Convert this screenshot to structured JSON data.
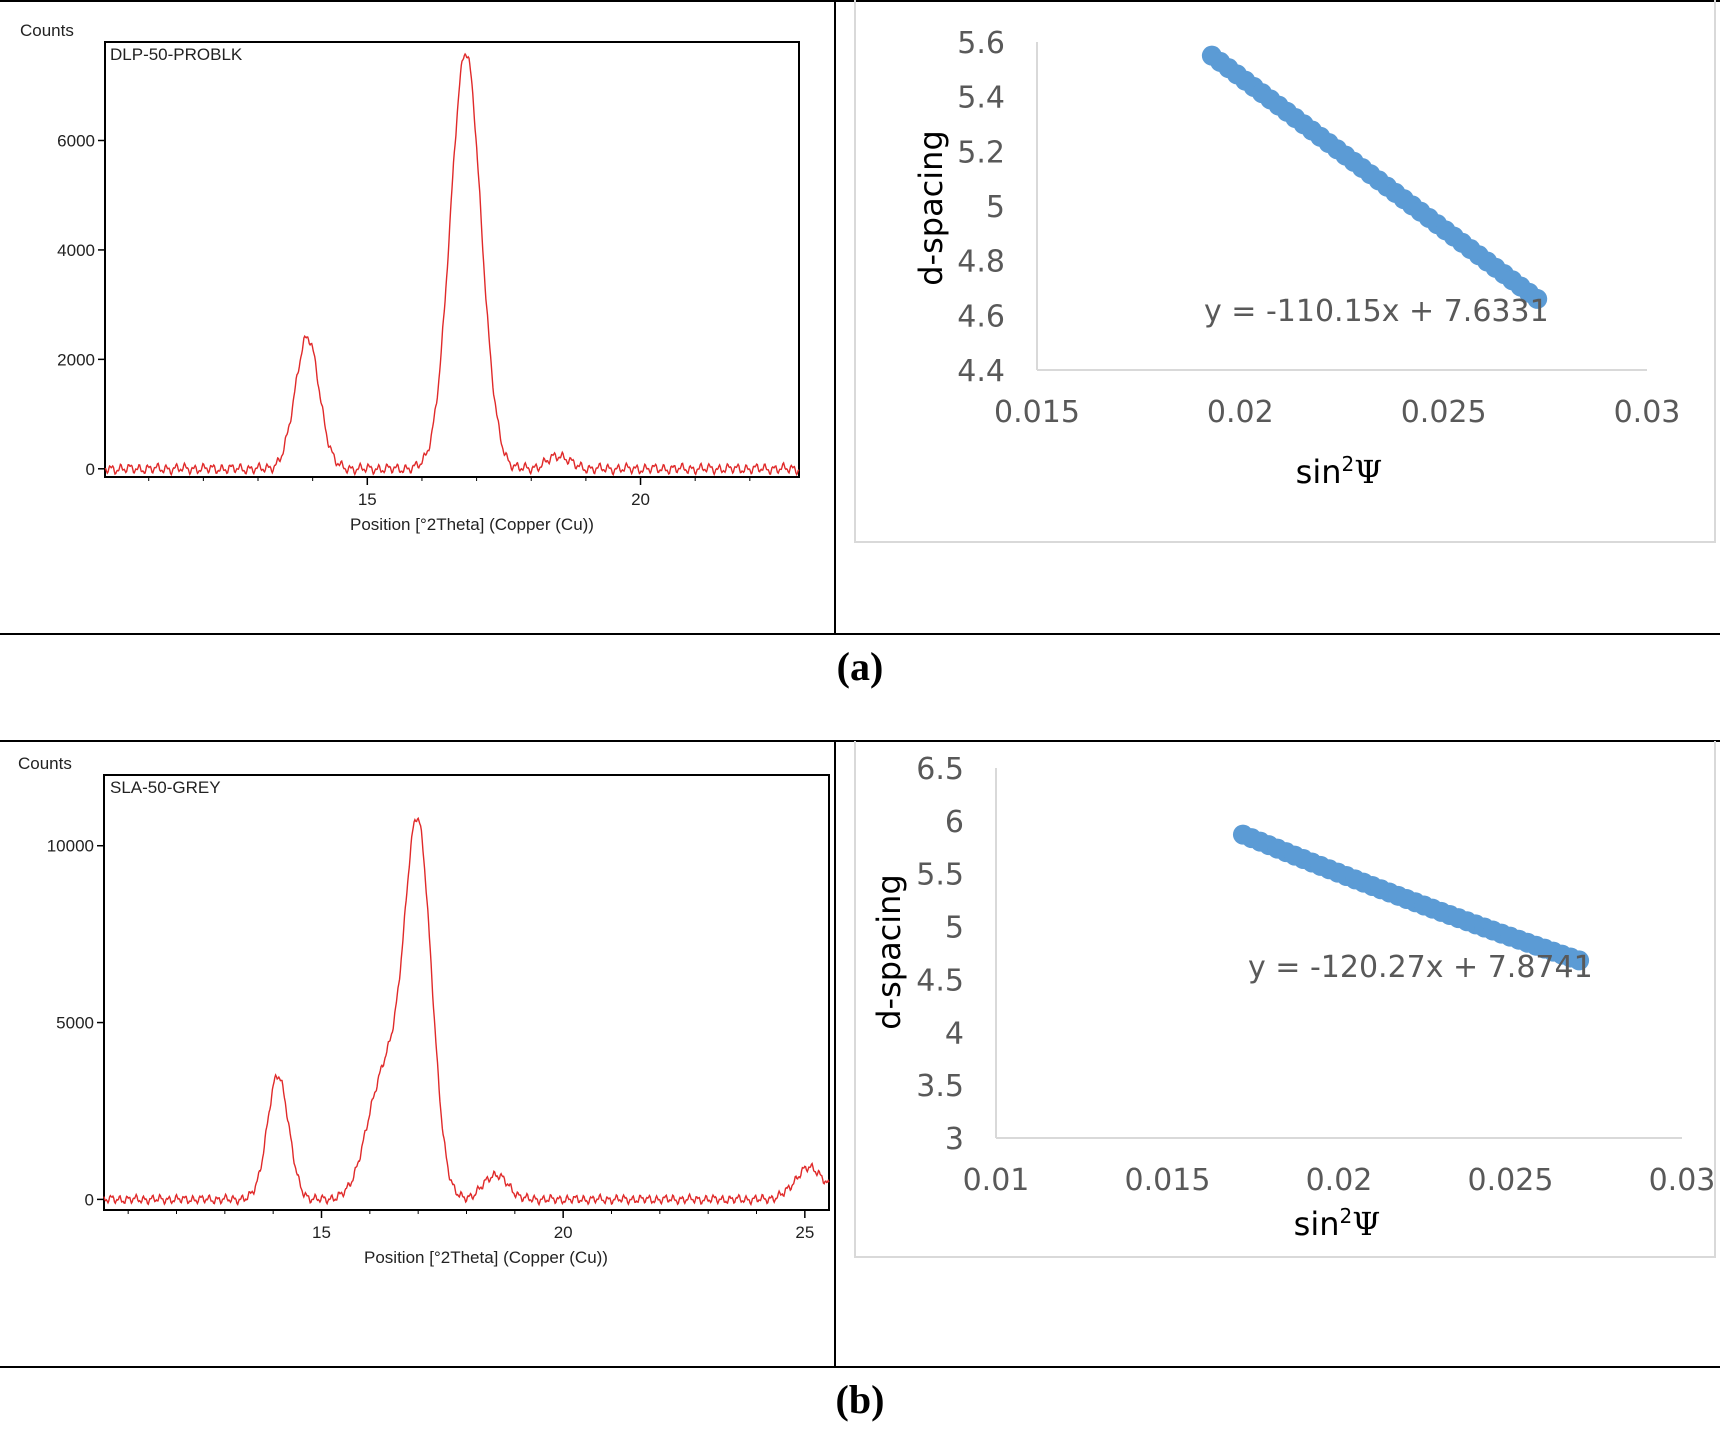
{
  "captions": {
    "a": "(a)",
    "b": "(b)"
  },
  "colors": {
    "xrd_line": "#e02a2a",
    "scatter": "#5b9bd5",
    "axis": "#d9d9d9"
  },
  "chart_data": [
    {
      "id": "xrd_a",
      "type": "line",
      "title": "DLP-50-PROBLK",
      "ylabel": "Counts",
      "xlabel": "Position [°2Theta] (Copper (Cu))",
      "xlim": [
        10.2,
        22.9
      ],
      "ylim": [
        -150,
        7800
      ],
      "xticks": [
        15,
        20
      ],
      "yticks": [
        0,
        2000,
        4000,
        6000
      ],
      "baseline_noise": 110,
      "peaks": [
        {
          "center": 13.9,
          "height": 2400,
          "width": 0.22
        },
        {
          "center": 16.8,
          "height": 7600,
          "width": 0.28
        },
        {
          "center": 18.5,
          "height": 240,
          "width": 0.2
        }
      ]
    },
    {
      "id": "sin2psi_a",
      "type": "scatter",
      "ylabel": "d-spacing",
      "xlabel_main": "sin",
      "xlabel_sup": "2",
      "xlabel_end": "Ψ",
      "xlim": [
        0.015,
        0.03
      ],
      "ylim": [
        4.4,
        5.6
      ],
      "xticks": [
        0.015,
        0.02,
        0.025,
        0.03
      ],
      "yticks": [
        4.4,
        4.6,
        4.8,
        5,
        5.2,
        5.4,
        5.6
      ],
      "xtick_labels": [
        "0.015",
        "0.02",
        "0.025",
        "0.03"
      ],
      "ytick_labels": [
        "4.4",
        "4.6",
        "4.8",
        "5",
        "5.2",
        "5.4",
        "5.6"
      ],
      "trendline": "y = -110.15x + 7.6331",
      "x_range": [
        0.0193,
        0.0273
      ],
      "y_start": 5.55,
      "y_end": 4.66,
      "n_points": 40,
      "curvature": 0.0
    },
    {
      "id": "xrd_b",
      "type": "line",
      "title": "SLA-50-GREY",
      "ylabel": "Counts",
      "xlabel": "Position [°2Theta] (Copper (Cu))",
      "xlim": [
        10.5,
        25.5
      ],
      "ylim": [
        -300,
        12000
      ],
      "xticks": [
        15,
        20,
        25
      ],
      "yticks": [
        0,
        5000,
        10000
      ],
      "baseline_noise": 150,
      "peaks": [
        {
          "center": 14.1,
          "height": 3500,
          "width": 0.22
        },
        {
          "center": 16.3,
          "height": 3500,
          "width": 0.35
        },
        {
          "center": 17.0,
          "height": 10300,
          "width": 0.28
        },
        {
          "center": 18.6,
          "height": 700,
          "width": 0.25
        },
        {
          "center": 25.1,
          "height": 900,
          "width": 0.3
        }
      ]
    },
    {
      "id": "sin2psi_b",
      "type": "scatter",
      "ylabel": "d-spacing",
      "xlabel_main": "sin",
      "xlabel_sup": "2",
      "xlabel_end": "Ψ",
      "xlim": [
        0.01,
        0.03
      ],
      "ylim": [
        3,
        6.5
      ],
      "xticks": [
        0.01,
        0.015,
        0.02,
        0.025,
        0.03
      ],
      "yticks": [
        3,
        3.5,
        4,
        4.5,
        5,
        5.5,
        6,
        6.5
      ],
      "xtick_labels": [
        "0.01",
        "0.015",
        "0.02",
        "0.025",
        "0.03"
      ],
      "ytick_labels": [
        "3",
        "3.5",
        "4",
        "4.5",
        "5",
        "5.5",
        "6",
        "6.5"
      ],
      "trendline": "y = -120.27x + 7.8741",
      "x_range": [
        0.0172,
        0.027
      ],
      "y_start": 5.87,
      "y_end": 4.68,
      "n_points": 40,
      "curvature": 0.12
    }
  ]
}
